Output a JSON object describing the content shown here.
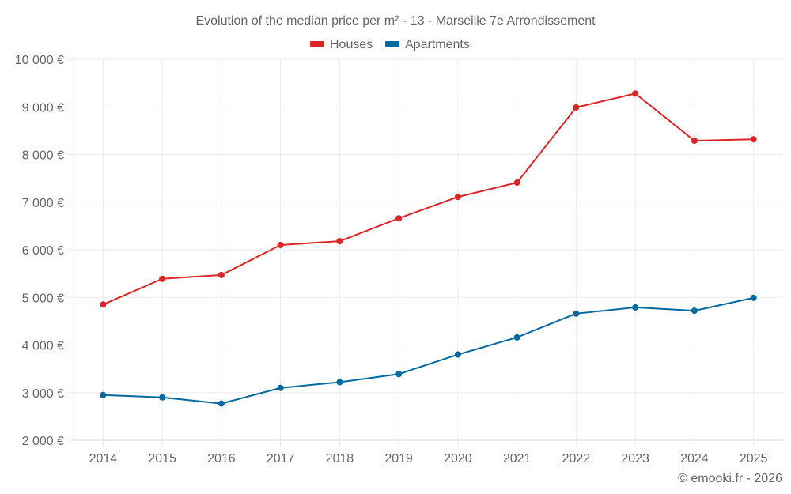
{
  "chart_data": {
    "type": "line",
    "title": "Evolution of the median price per m² - 13 - Marseille 7e Arrondissement",
    "xlabel": "",
    "ylabel": "",
    "categories": [
      "2014",
      "2015",
      "2016",
      "2017",
      "2018",
      "2019",
      "2020",
      "2021",
      "2022",
      "2023",
      "2024",
      "2025"
    ],
    "y_ticks": [
      2000,
      3000,
      4000,
      5000,
      6000,
      7000,
      8000,
      9000,
      10000
    ],
    "y_tick_labels": [
      "2 000 €",
      "3 000 €",
      "4 000 €",
      "5 000 €",
      "6 000 €",
      "7 000 €",
      "8 000 €",
      "9 000 €",
      "10 000 €"
    ],
    "ylim": [
      2000,
      10000
    ],
    "grid": true,
    "legend_position": "top-center",
    "series": [
      {
        "name": "Houses",
        "color": "#dc2626",
        "values": [
          4850,
          5390,
          5470,
          6100,
          6180,
          6660,
          7110,
          7410,
          8990,
          9280,
          8290,
          8320
        ]
      },
      {
        "name": "Apartments",
        "color": "#0369a1",
        "values": [
          2950,
          2900,
          2770,
          3100,
          3220,
          3390,
          3800,
          4160,
          4660,
          4790,
          4720,
          4990
        ]
      }
    ],
    "credit": "© emooki.fr - 2026"
  }
}
